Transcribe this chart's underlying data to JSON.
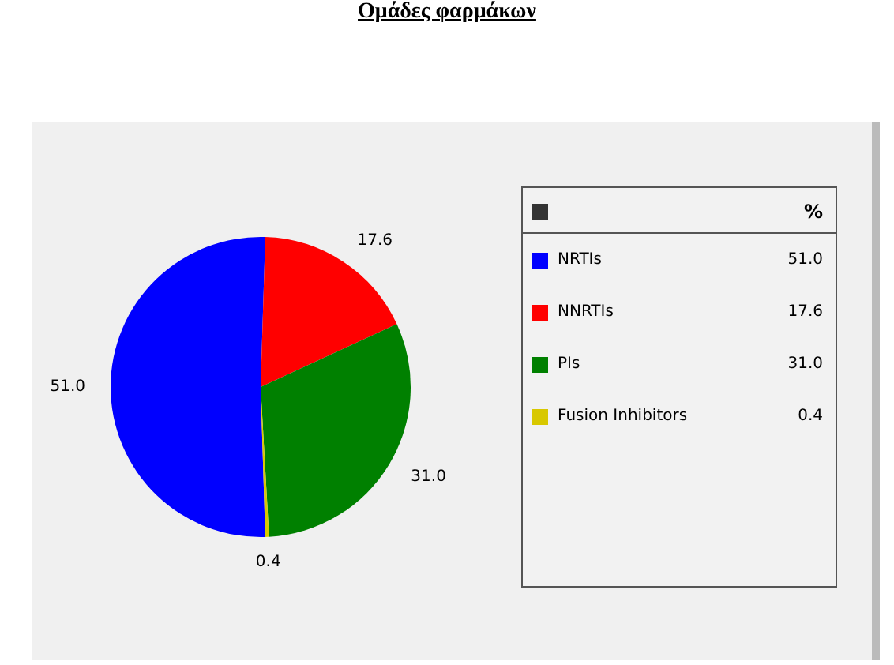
{
  "chart_data": {
    "type": "pie",
    "title": "Ομάδες φαρμάκων",
    "legend_title": "%",
    "categories": [
      "NRTIs",
      "NNRTIs",
      "PIs",
      "Fusion Inhibitors"
    ],
    "values": [
      51.0,
      17.6,
      31.0,
      0.4
    ],
    "value_labels": [
      "51.0",
      "17.6",
      "31.0",
      "0.4"
    ],
    "colors": [
      "#0000ff",
      "#ff0000",
      "#008000",
      "#d8c800"
    ],
    "legend": "right"
  }
}
